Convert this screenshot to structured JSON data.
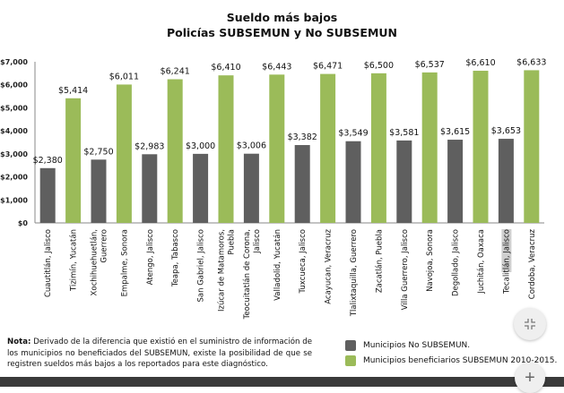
{
  "chart_data": {
    "type": "bar",
    "title": "Sueldo más bajos",
    "subtitle": "Policías SUBSEMUN y No SUBSEMUN",
    "xlabel": "",
    "ylabel": "",
    "ylim": [
      0,
      7000
    ],
    "yticks": [
      "$0",
      "$1,000",
      "$2,000",
      "$3,000",
      "$4,000",
      "$5,000",
      "$6,000",
      "$7,000"
    ],
    "ytick_values": [
      0,
      1000,
      2000,
      3000,
      4000,
      5000,
      6000,
      7000
    ],
    "grid": false,
    "categories": [
      [
        "Cuautitlán, Jalisco"
      ],
      [
        "Tizimín, Yucatán"
      ],
      [
        "Xochihuehuetlán,",
        "Guerrero"
      ],
      [
        "Empalme, Sonora"
      ],
      [
        "Atengo, Jalisco"
      ],
      [
        "Teapa, Tabasco"
      ],
      [
        "San Gabriel, Jalisco"
      ],
      [
        "Izúcar de Matamoros,",
        "Puebla"
      ],
      [
        "Teocuitatlán de Corona,",
        "Jalisco"
      ],
      [
        "Valladolid, Yucatán"
      ],
      [
        "Tuxcueca, Jalisco"
      ],
      [
        "Acayucan, Veracruz"
      ],
      [
        "Tlalixtaquilla, Guerrero"
      ],
      [
        "Zacatlán, Puebla"
      ],
      [
        "Villa Guerrero, Jalisco"
      ],
      [
        "Navojoa, Sonora"
      ],
      [
        "Degollado, Jalisco"
      ],
      [
        "Juchitán, Oaxaca"
      ],
      [
        "Tecalitlán, Jalisco"
      ],
      [
        "Cordoba, Veracruz"
      ]
    ],
    "values": [
      2380,
      5414,
      2750,
      6011,
      2983,
      6241,
      3000,
      6410,
      3006,
      6443,
      3382,
      6471,
      3549,
      6500,
      3581,
      6537,
      3615,
      6610,
      3653,
      6633
    ],
    "value_labels": [
      "$2,380",
      "$5,414",
      "$2,750",
      "$6,011",
      "$2,983",
      "$6,241",
      "$3,000",
      "$6,410",
      "$3,006",
      "$6,443",
      "$3,382",
      "$6,471",
      "$3,549",
      "$6,500",
      "$3,581",
      "$6,537",
      "$3,615",
      "$6,610",
      "$3,653",
      "$6,633"
    ],
    "groups": [
      "no",
      "si",
      "no",
      "si",
      "no",
      "si",
      "no",
      "si",
      "no",
      "si",
      "no",
      "si",
      "no",
      "si",
      "no",
      "si",
      "no",
      "si",
      "no",
      "si"
    ],
    "series": [
      {
        "name": "Municipios No SUBSEMUN.",
        "key": "no",
        "color": "#5f5f5f"
      },
      {
        "name": "Municipios beneficiarios SUBSEMUN 2010-2015.",
        "key": "si",
        "color": "#9bbb59"
      }
    ],
    "legend_position": "bottom-right",
    "selected_category_index": 18
  },
  "note": {
    "label": "Nota:",
    "text": " Derivado de la diferencia que existió en el suministro de información de los municipios no beneficiados del SUBSEMUN, existe la posibilidad de que se registren sueldos más bajos a los reportados para este diagnóstico."
  },
  "controls": {
    "collapse_icon": "collapse-icon",
    "plus_label": "+"
  }
}
